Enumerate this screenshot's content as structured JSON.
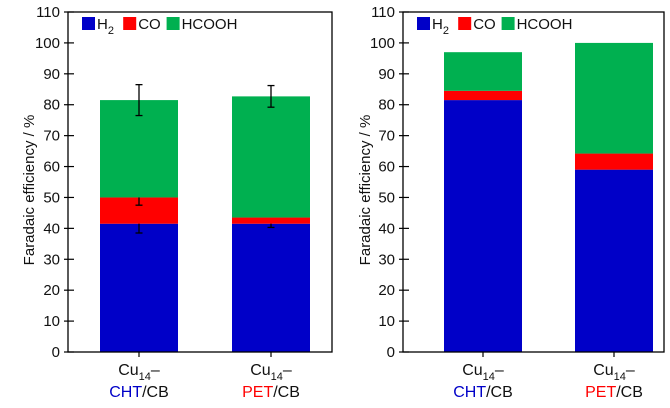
{
  "colors": {
    "H2": "#0000c8",
    "CO": "#ff0000",
    "HCOOH": "#00b050",
    "axis": "#000000"
  },
  "chart_data": [
    {
      "type": "bar",
      "stacked": true,
      "ylabel": "Faradaic efficiency / %",
      "ylim": [
        0,
        110
      ],
      "yticks": [
        "0",
        "10",
        "20",
        "30",
        "40",
        "50",
        "60",
        "70",
        "80",
        "90",
        "100",
        "110"
      ],
      "legend": {
        "placement": "top-left",
        "entries": [
          {
            "base": "H",
            "sub": "2"
          },
          {
            "base": "CO",
            "sub": ""
          },
          {
            "base": "HCOOH",
            "sub": ""
          }
        ]
      },
      "categories": [
        {
          "line1_base": "Cu",
          "line1_sub": "14",
          "line1_suffix": "–",
          "line2_colored": "CHT",
          "line2_color": "#0000c8",
          "line2_rest": "/CB"
        },
        {
          "line1_base": "Cu",
          "line1_sub": "14",
          "line1_suffix": "–",
          "line2_colored": "PET",
          "line2_color": "#ff0000",
          "line2_rest": "/CB"
        }
      ],
      "series": [
        {
          "key": "H2",
          "values": [
            41.5,
            41.5
          ],
          "errors": [
            3,
            1.2
          ]
        },
        {
          "key": "CO",
          "values": [
            8.5,
            2.0
          ],
          "errors": [
            2.5,
            0
          ]
        },
        {
          "key": "HCOOH",
          "values": [
            31.5,
            39.2
          ],
          "errors": [
            5,
            3.5
          ]
        }
      ]
    },
    {
      "type": "bar",
      "stacked": true,
      "ylabel": "Faradaic efficiency / %",
      "ylim": [
        0,
        110
      ],
      "yticks": [
        "0",
        "10",
        "20",
        "30",
        "40",
        "50",
        "60",
        "70",
        "80",
        "90",
        "100",
        "110"
      ],
      "legend": {
        "placement": "top-left",
        "entries": [
          {
            "base": "H",
            "sub": "2"
          },
          {
            "base": "CO",
            "sub": ""
          },
          {
            "base": "HCOOH",
            "sub": ""
          }
        ]
      },
      "categories": [
        {
          "line1_base": "Cu",
          "line1_sub": "14",
          "line1_suffix": "–",
          "line2_colored": "CHT",
          "line2_color": "#0000c8",
          "line2_rest": "/CB"
        },
        {
          "line1_base": "Cu",
          "line1_sub": "14",
          "line1_suffix": "–",
          "line2_colored": "PET",
          "line2_color": "#ff0000",
          "line2_rest": "/CB"
        }
      ],
      "series": [
        {
          "key": "H2",
          "values": [
            81.5,
            59.0
          ],
          "errors": [
            0,
            0
          ]
        },
        {
          "key": "CO",
          "values": [
            3.0,
            5.2
          ],
          "errors": [
            0,
            0
          ]
        },
        {
          "key": "HCOOH",
          "values": [
            12.5,
            35.8
          ],
          "errors": [
            0,
            0
          ]
        }
      ]
    }
  ]
}
